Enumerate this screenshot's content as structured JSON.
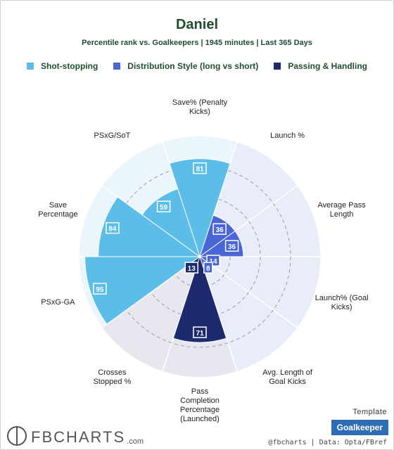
{
  "chart_data": {
    "type": "polar-bar",
    "title": "Daniel",
    "subtitle": "Percentile rank vs. Goalkeepers | 1945 minutes | Last 365 Days",
    "groups": [
      {
        "name": "Shot-stopping",
        "color": "#5bbde8",
        "bg": "#eaf6fc"
      },
      {
        "name": "Distribution Style (long vs short)",
        "color": "#4a65d6",
        "bg": "#e9ecf9"
      },
      {
        "name": "Passing & Handling",
        "color": "#1e2a6e",
        "bg": "#e7e7ef"
      }
    ],
    "metrics": [
      {
        "label": "Save% (Penalty Kicks)",
        "value": 81,
        "group": 0
      },
      {
        "label": "Launch %",
        "value": 36,
        "group": 1
      },
      {
        "label": "Average Pass Length",
        "value": 36,
        "group": 1
      },
      {
        "label": "Launch% (Goal Kicks)",
        "value": 14,
        "group": 1
      },
      {
        "label": "Avg. Length of Goal Kicks",
        "value": 8,
        "group": 1
      },
      {
        "label": "Pass Completion Percentage (Launched)",
        "value": 71,
        "group": 2
      },
      {
        "label": "Crosses Stopped %",
        "value": 13,
        "group": 2
      },
      {
        "label": "PSxG-GA",
        "value": 95,
        "group": 0
      },
      {
        "label": "Save Percentage",
        "value": 84,
        "group": 0
      },
      {
        "label": "PSxG/SoT",
        "value": 59,
        "group": 0
      }
    ],
    "rlim": [
      0,
      100
    ]
  },
  "axis_labels": [
    [
      "Save% (Penalty",
      "Kicks)"
    ],
    [
      "Launch %"
    ],
    [
      "Average Pass",
      "Length"
    ],
    [
      "Launch% (Goal",
      "Kicks)"
    ],
    [
      "Avg. Length of",
      "Goal Kicks"
    ],
    [
      "Pass",
      "Completion",
      "Percentage",
      "(Launched)"
    ],
    [
      "Crosses",
      "Stopped %"
    ],
    [
      "PSxG-GA"
    ],
    [
      "Save",
      "Percentage"
    ],
    [
      "PSxG/SoT"
    ]
  ],
  "footer": {
    "template_label": "Template",
    "template_value": "Goalkeeper",
    "credit": "@fbcharts | Data: Opta/FBref",
    "logo_text": "FBCHARTS",
    "logo_suffix": ".com"
  }
}
